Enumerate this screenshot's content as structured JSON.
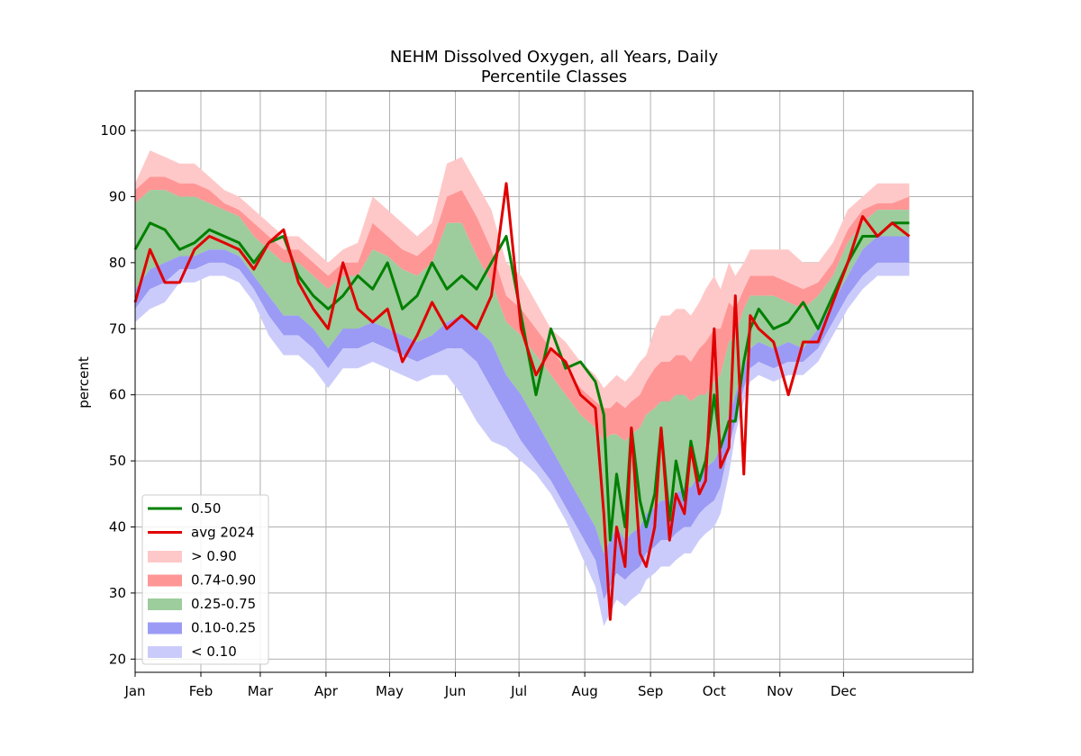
{
  "chart_data": {
    "type": "area",
    "title": "NEHM Dissolved Oxygen, all Years, Daily",
    "subtitle": "Percentile Classes",
    "xlabel": "",
    "ylabel": "percent",
    "grid": true,
    "legend_position": "lower-left",
    "xlim": [
      1,
      396
    ],
    "ylim": [
      18,
      106
    ],
    "y_ticks": [
      20,
      30,
      40,
      50,
      60,
      70,
      80,
      90,
      100
    ],
    "x_ticks": [
      {
        "day": 1,
        "label": "Jan"
      },
      {
        "day": 32,
        "label": "Feb"
      },
      {
        "day": 60,
        "label": "Mar"
      },
      {
        "day": 91,
        "label": "Apr"
      },
      {
        "day": 121,
        "label": "May"
      },
      {
        "day": 152,
        "label": "Jun"
      },
      {
        "day": 182,
        "label": "Jul"
      },
      {
        "day": 213,
        "label": "Aug"
      },
      {
        "day": 244,
        "label": "Sep"
      },
      {
        "day": 274,
        "label": "Oct"
      },
      {
        "day": 305,
        "label": "Nov"
      },
      {
        "day": 335,
        "label": "Dec"
      }
    ],
    "x": [
      1,
      8,
      15,
      22,
      29,
      36,
      43,
      50,
      57,
      64,
      71,
      78,
      85,
      92,
      99,
      106,
      113,
      120,
      127,
      134,
      141,
      148,
      155,
      162,
      169,
      176,
      183,
      190,
      197,
      204,
      211,
      218,
      222,
      225,
      228,
      232,
      235,
      239,
      242,
      246,
      249,
      253,
      256,
      260,
      263,
      267,
      270,
      274,
      277,
      281,
      284,
      288,
      291,
      295,
      302,
      309,
      316,
      323,
      330,
      337,
      344,
      351,
      358,
      366
    ],
    "bands": [
      {
        "name": "> 0.90",
        "color": "#ffc8c8",
        "lower": "p90",
        "upper": "max"
      },
      {
        "name": "0.74-0.90",
        "color": "#ff9696",
        "lower": "p75",
        "upper": "p90"
      },
      {
        "name": "0.25-0.75",
        "color": "#9dcc9d",
        "lower": "p25",
        "upper": "p75"
      },
      {
        "name": "0.10-0.25",
        "color": "#9b9bf5",
        "lower": "p10",
        "upper": "p25"
      },
      {
        "name": "< 0.10",
        "color": "#cbcbfb",
        "lower": "min",
        "upper": "p10"
      }
    ],
    "percentiles": {
      "max": [
        92,
        97,
        96,
        95,
        95,
        93,
        91,
        90,
        88,
        86,
        84,
        84,
        82,
        80,
        82,
        83,
        90,
        88,
        86,
        84,
        86,
        95,
        96,
        92,
        88,
        80,
        78,
        74,
        70,
        68,
        65,
        63,
        61,
        62,
        63,
        62,
        63,
        65,
        66,
        70,
        72,
        72,
        73,
        73,
        72,
        74,
        76,
        78,
        76,
        80,
        78,
        80,
        82,
        82,
        82,
        82,
        80,
        80,
        83,
        88,
        90,
        92,
        92,
        92
      ],
      "p90": [
        91,
        93,
        93,
        92,
        92,
        91,
        89,
        88,
        86,
        84,
        82,
        82,
        80,
        78,
        80,
        80,
        86,
        84,
        82,
        81,
        83,
        90,
        91,
        87,
        82,
        75,
        73,
        70,
        67,
        64,
        61,
        59,
        58,
        58,
        59,
        58,
        59,
        60,
        62,
        64,
        65,
        65,
        66,
        66,
        65,
        67,
        68,
        70,
        70,
        74,
        73,
        76,
        78,
        78,
        78,
        77,
        76,
        77,
        80,
        85,
        88,
        89,
        89,
        90
      ],
      "p75": [
        89,
        91,
        91,
        90,
        90,
        89,
        88,
        87,
        84,
        82,
        80,
        80,
        78,
        76,
        78,
        78,
        82,
        81,
        79,
        78,
        80,
        86,
        86,
        81,
        77,
        71,
        69,
        66,
        63,
        60,
        57,
        55,
        53,
        54,
        54,
        53,
        54,
        55,
        57,
        58,
        59,
        59,
        60,
        60,
        59,
        60,
        60,
        62,
        63,
        68,
        69,
        73,
        75,
        75,
        75,
        74,
        73,
        75,
        78,
        83,
        86,
        88,
        88,
        88
      ],
      "p25": [
        76,
        79,
        80,
        81,
        81,
        82,
        82,
        81,
        78,
        75,
        72,
        72,
        70,
        67,
        70,
        70,
        71,
        70,
        69,
        68,
        69,
        71,
        72,
        70,
        68,
        63,
        60,
        56,
        52,
        48,
        44,
        40,
        36,
        38,
        40,
        38,
        39,
        40,
        42,
        43,
        44,
        44,
        45,
        46,
        46,
        48,
        49,
        50,
        52,
        57,
        60,
        64,
        67,
        68,
        67,
        68,
        67,
        70,
        74,
        78,
        82,
        84,
        84,
        84
      ],
      "p10": [
        73,
        76,
        77,
        79,
        79,
        80,
        80,
        79,
        76,
        72,
        69,
        69,
        67,
        64,
        67,
        67,
        68,
        67,
        66,
        65,
        66,
        67,
        67,
        65,
        61,
        57,
        53,
        50,
        47,
        43,
        39,
        35,
        29,
        31,
        33,
        32,
        33,
        34,
        36,
        37,
        38,
        38,
        39,
        40,
        40,
        42,
        43,
        44,
        46,
        52,
        56,
        61,
        64,
        65,
        64,
        65,
        65,
        67,
        71,
        75,
        78,
        80,
        80,
        80
      ],
      "min": [
        71,
        73,
        74,
        77,
        77,
        78,
        78,
        77,
        74,
        69,
        66,
        66,
        64,
        61,
        64,
        64,
        65,
        64,
        63,
        62,
        63,
        63,
        60,
        56,
        53,
        52,
        50,
        48,
        45,
        41,
        36,
        31,
        25,
        27,
        29,
        28,
        29,
        30,
        32,
        33,
        34,
        34,
        35,
        36,
        36,
        38,
        39,
        40,
        42,
        48,
        54,
        59,
        62,
        63,
        62,
        63,
        63,
        65,
        69,
        73,
        76,
        78,
        78,
        78
      ]
    },
    "series": [
      {
        "name": "0.50",
        "color": "#008000",
        "values": [
          82,
          86,
          85,
          82,
          83,
          85,
          84,
          83,
          80,
          83,
          84,
          78,
          75,
          73,
          75,
          78,
          76,
          80,
          73,
          75,
          80,
          76,
          78,
          76,
          80,
          84,
          72,
          60,
          70,
          64,
          65,
          62,
          57,
          38,
          48,
          40,
          55,
          44,
          40,
          45,
          55,
          41,
          50,
          44,
          53,
          47,
          50,
          60,
          52,
          56,
          56,
          65,
          70,
          73,
          70,
          71,
          74,
          70,
          75,
          80,
          84,
          84,
          86,
          86
        ]
      },
      {
        "name": "avg 2024",
        "color": "#e00000",
        "values": [
          74,
          82,
          77,
          77,
          82,
          84,
          83,
          82,
          79,
          83,
          85,
          77,
          73,
          70,
          80,
          73,
          71,
          73,
          65,
          69,
          74,
          70,
          72,
          70,
          75,
          92,
          70,
          63,
          67,
          65,
          60,
          58,
          42,
          26,
          40,
          34,
          55,
          36,
          34,
          40,
          55,
          38,
          45,
          42,
          52,
          45,
          47,
          70,
          49,
          52,
          75,
          48,
          72,
          70,
          68,
          60,
          68,
          68,
          74,
          80,
          87,
          84,
          86,
          84
        ]
      }
    ]
  }
}
